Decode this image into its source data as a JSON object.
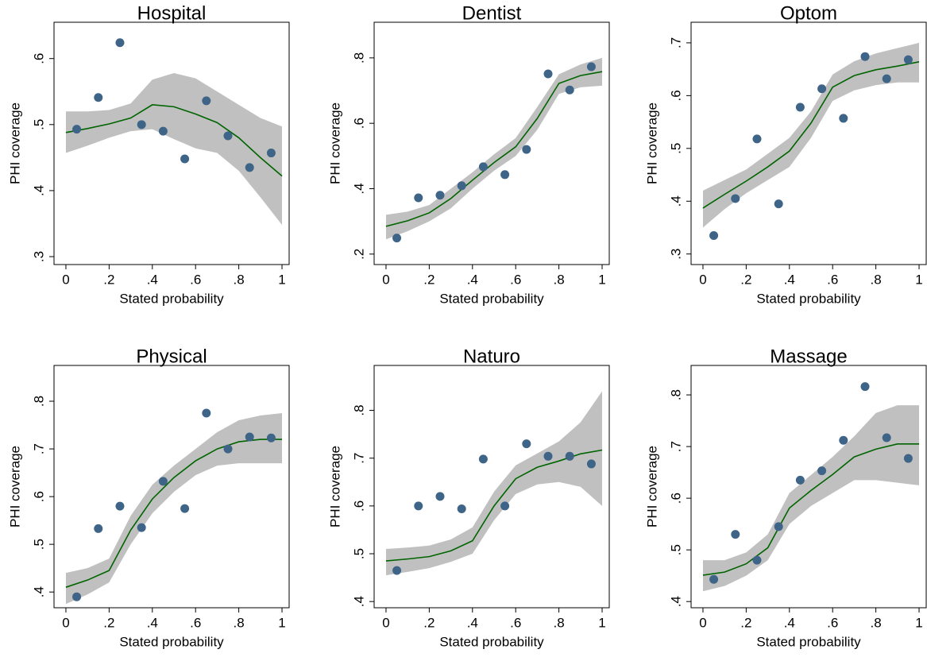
{
  "chart_data": [
    {
      "type": "scatter",
      "title": "Hospital",
      "xlabel": "Stated probability",
      "ylabel": "PHI coverage",
      "x": [
        0.05,
        0.15,
        0.25,
        0.35,
        0.45,
        0.55,
        0.65,
        0.75,
        0.85,
        0.95
      ],
      "values": [
        0.493,
        0.541,
        0.624,
        0.5,
        0.49,
        0.448,
        0.536,
        0.483,
        0.435,
        0.457
      ],
      "color": "#3e6487",
      "fit_x": [
        0,
        0.1,
        0.2,
        0.3,
        0.4,
        0.5,
        0.6,
        0.7,
        0.8,
        0.9,
        1
      ],
      "fit": [
        0.488,
        0.494,
        0.501,
        0.51,
        0.53,
        0.527,
        0.516,
        0.503,
        0.48,
        0.45,
        0.422
      ],
      "fit_color": "#006400",
      "ci_upper": [
        0.52,
        0.52,
        0.522,
        0.532,
        0.568,
        0.578,
        0.57,
        0.55,
        0.53,
        0.51,
        0.497
      ],
      "ci_lower": [
        0.457,
        0.468,
        0.48,
        0.49,
        0.493,
        0.478,
        0.464,
        0.457,
        0.43,
        0.39,
        0.348
      ],
      "ci_color": "#c0c0c0",
      "xlim": [
        -0.055,
        1.033
      ],
      "ylim": [
        0.288,
        0.655
      ],
      "xticks": [
        0,
        {
          "value": 0.2,
          "label": ".2"
        },
        {
          "value": 0.4,
          "label": ".4"
        },
        {
          "value": 0.6,
          "label": ".6"
        },
        {
          "value": 0.8,
          "label": ".8"
        },
        1
      ],
      "yticks": [
        {
          "value": 0.3,
          "label": ".3"
        },
        {
          "value": 0.4,
          "label": ".4"
        },
        {
          "value": 0.5,
          "label": ".5"
        },
        {
          "value": 0.6,
          "label": ".6"
        }
      ]
    },
    {
      "type": "scatter",
      "title": "Dentist",
      "xlabel": "Stated probability",
      "ylabel": "PHI coverage",
      "x": [
        0.05,
        0.15,
        0.25,
        0.35,
        0.45,
        0.55,
        0.65,
        0.75,
        0.85,
        0.95
      ],
      "values": [
        0.249,
        0.372,
        0.38,
        0.409,
        0.467,
        0.443,
        0.52,
        0.751,
        0.702,
        0.773
      ],
      "color": "#3e6487",
      "fit_x": [
        0,
        0.1,
        0.2,
        0.3,
        0.4,
        0.5,
        0.6,
        0.7,
        0.8,
        0.9,
        1
      ],
      "fit": [
        0.285,
        0.302,
        0.326,
        0.37,
        0.426,
        0.48,
        0.528,
        0.615,
        0.722,
        0.746,
        0.758
      ],
      "fit_color": "#006400",
      "ci_upper": [
        0.32,
        0.33,
        0.35,
        0.4,
        0.45,
        0.505,
        0.555,
        0.65,
        0.75,
        0.78,
        0.8
      ],
      "ci_lower": [
        0.245,
        0.27,
        0.3,
        0.34,
        0.4,
        0.455,
        0.5,
        0.58,
        0.69,
        0.71,
        0.715
      ],
      "ci_color": "#c0c0c0",
      "xlim": [
        -0.055,
        1.033
      ],
      "ylim": [
        0.168,
        0.909
      ],
      "xticks": [
        0,
        {
          "value": 0.2,
          "label": ".2"
        },
        {
          "value": 0.4,
          "label": ".4"
        },
        {
          "value": 0.6,
          "label": ".6"
        },
        {
          "value": 0.8,
          "label": ".8"
        },
        1
      ],
      "yticks": [
        {
          "value": 0.2,
          "label": ".2"
        },
        {
          "value": 0.4,
          "label": ".4"
        },
        {
          "value": 0.6,
          "label": ".6"
        },
        {
          "value": 0.8,
          "label": ".8"
        }
      ]
    },
    {
      "type": "scatter",
      "title": "Optom",
      "xlabel": "Stated probability",
      "ylabel": "PHI coverage",
      "x": [
        0.05,
        0.15,
        0.25,
        0.35,
        0.45,
        0.55,
        0.65,
        0.75,
        0.85,
        0.95
      ],
      "values": [
        0.335,
        0.405,
        0.518,
        0.395,
        0.578,
        0.613,
        0.557,
        0.674,
        0.632,
        0.668
      ],
      "color": "#3e6487",
      "fit_x": [
        0,
        0.1,
        0.2,
        0.3,
        0.4,
        0.5,
        0.6,
        0.7,
        0.8,
        0.9,
        1
      ],
      "fit": [
        0.387,
        0.413,
        0.438,
        0.465,
        0.495,
        0.548,
        0.616,
        0.638,
        0.649,
        0.656,
        0.664
      ],
      "fit_color": "#006400",
      "ci_upper": [
        0.42,
        0.44,
        0.46,
        0.49,
        0.52,
        0.57,
        0.64,
        0.665,
        0.68,
        0.69,
        0.7
      ],
      "ci_lower": [
        0.35,
        0.385,
        0.415,
        0.44,
        0.465,
        0.52,
        0.59,
        0.61,
        0.62,
        0.625,
        0.625
      ],
      "ci_color": "#c0c0c0",
      "xlim": [
        -0.055,
        1.033
      ],
      "ylim": [
        0.28,
        0.739
      ],
      "xticks": [
        0,
        {
          "value": 0.2,
          "label": ".2"
        },
        {
          "value": 0.4,
          "label": ".4"
        },
        {
          "value": 0.6,
          "label": ".6"
        },
        {
          "value": 0.8,
          "label": ".8"
        },
        1
      ],
      "yticks": [
        {
          "value": 0.3,
          "label": ".3"
        },
        {
          "value": 0.4,
          "label": ".4"
        },
        {
          "value": 0.5,
          "label": ".5"
        },
        {
          "value": 0.6,
          "label": ".6"
        },
        {
          "value": 0.7,
          "label": ".7"
        }
      ]
    },
    {
      "type": "scatter",
      "title": "Physical",
      "xlabel": "Stated probability",
      "ylabel": "PHI coverage",
      "x": [
        0.05,
        0.15,
        0.25,
        0.35,
        0.45,
        0.55,
        0.65,
        0.75,
        0.85,
        0.95
      ],
      "values": [
        0.39,
        0.533,
        0.58,
        0.535,
        0.632,
        0.575,
        0.775,
        0.7,
        0.725,
        0.723
      ],
      "color": "#3e6487",
      "fit_x": [
        0,
        0.1,
        0.2,
        0.3,
        0.4,
        0.5,
        0.6,
        0.7,
        0.8,
        0.9,
        1
      ],
      "fit": [
        0.41,
        0.425,
        0.445,
        0.53,
        0.595,
        0.64,
        0.675,
        0.7,
        0.715,
        0.72,
        0.72
      ],
      "fit_color": "#006400",
      "ci_upper": [
        0.44,
        0.45,
        0.47,
        0.56,
        0.625,
        0.665,
        0.7,
        0.735,
        0.76,
        0.77,
        0.775
      ],
      "ci_lower": [
        0.375,
        0.395,
        0.42,
        0.5,
        0.565,
        0.61,
        0.645,
        0.665,
        0.67,
        0.67,
        0.67
      ],
      "ci_color": "#c0c0c0",
      "xlim": [
        -0.055,
        1.033
      ],
      "ylim": [
        0.367,
        0.875
      ],
      "xticks": [
        0,
        {
          "value": 0.2,
          "label": ".2"
        },
        {
          "value": 0.4,
          "label": ".4"
        },
        {
          "value": 0.6,
          "label": ".6"
        },
        {
          "value": 0.8,
          "label": ".8"
        },
        1
      ],
      "yticks": [
        {
          "value": 0.4,
          "label": ".4"
        },
        {
          "value": 0.5,
          "label": ".5"
        },
        {
          "value": 0.6,
          "label": ".6"
        },
        {
          "value": 0.7,
          "label": ".7"
        },
        {
          "value": 0.8,
          "label": ".8"
        }
      ]
    },
    {
      "type": "scatter",
      "title": "Naturo",
      "xlabel": "Stated probability",
      "ylabel": "PHI coverage",
      "x": [
        0.05,
        0.15,
        0.25,
        0.35,
        0.45,
        0.55,
        0.65,
        0.75,
        0.85,
        0.95
      ],
      "values": [
        0.465,
        0.6,
        0.62,
        0.594,
        0.698,
        0.6,
        0.73,
        0.704,
        0.704,
        0.688
      ],
      "color": "#3e6487",
      "fit_x": [
        0,
        0.1,
        0.2,
        0.3,
        0.4,
        0.5,
        0.6,
        0.7,
        0.8,
        0.9,
        1
      ],
      "fit": [
        0.485,
        0.489,
        0.494,
        0.506,
        0.527,
        0.6,
        0.657,
        0.681,
        0.694,
        0.709,
        0.717
      ],
      "fit_color": "#006400",
      "ci_upper": [
        0.51,
        0.513,
        0.517,
        0.53,
        0.555,
        0.63,
        0.685,
        0.71,
        0.735,
        0.775,
        0.84
      ],
      "ci_lower": [
        0.455,
        0.462,
        0.47,
        0.483,
        0.5,
        0.57,
        0.625,
        0.645,
        0.65,
        0.64,
        0.6
      ],
      "ci_color": "#c0c0c0",
      "xlim": [
        -0.055,
        1.033
      ],
      "ylim": [
        0.387,
        0.894
      ],
      "xticks": [
        0,
        {
          "value": 0.2,
          "label": ".2"
        },
        {
          "value": 0.4,
          "label": ".4"
        },
        {
          "value": 0.6,
          "label": ".6"
        },
        {
          "value": 0.8,
          "label": ".8"
        },
        1
      ],
      "yticks": [
        {
          "value": 0.4,
          "label": ".4"
        },
        {
          "value": 0.5,
          "label": ".5"
        },
        {
          "value": 0.6,
          "label": ".6"
        },
        {
          "value": 0.7,
          "label": ".7"
        },
        {
          "value": 0.8,
          "label": ".8"
        }
      ]
    },
    {
      "type": "scatter",
      "title": "Massage",
      "xlabel": "Stated probability",
      "ylabel": "PHI coverage",
      "x": [
        0.05,
        0.15,
        0.25,
        0.35,
        0.45,
        0.55,
        0.65,
        0.75,
        0.85,
        0.95
      ],
      "values": [
        0.443,
        0.53,
        0.48,
        0.545,
        0.635,
        0.653,
        0.712,
        0.816,
        0.717,
        0.677
      ],
      "color": "#3e6487",
      "fit_x": [
        0,
        0.1,
        0.2,
        0.3,
        0.4,
        0.5,
        0.6,
        0.7,
        0.8,
        0.9,
        1
      ],
      "fit": [
        0.451,
        0.457,
        0.473,
        0.504,
        0.581,
        0.615,
        0.646,
        0.68,
        0.695,
        0.705,
        0.705
      ],
      "fit_color": "#006400",
      "ci_upper": [
        0.48,
        0.48,
        0.495,
        0.53,
        0.61,
        0.645,
        0.68,
        0.72,
        0.765,
        0.78,
        0.78
      ],
      "ci_lower": [
        0.42,
        0.43,
        0.45,
        0.48,
        0.55,
        0.585,
        0.61,
        0.635,
        0.635,
        0.63,
        0.625
      ],
      "ci_color": "#c0c0c0",
      "xlim": [
        -0.055,
        1.033
      ],
      "ylim": [
        0.388,
        0.857
      ],
      "xticks": [
        0,
        {
          "value": 0.2,
          "label": ".2"
        },
        {
          "value": 0.4,
          "label": ".4"
        },
        {
          "value": 0.6,
          "label": ".6"
        },
        {
          "value": 0.8,
          "label": ".8"
        },
        1
      ],
      "yticks": [
        {
          "value": 0.4,
          "label": ".4"
        },
        {
          "value": 0.5,
          "label": ".5"
        },
        {
          "value": 0.6,
          "label": ".6"
        },
        {
          "value": 0.7,
          "label": ".7"
        },
        {
          "value": 0.8,
          "label": ".8"
        }
      ]
    }
  ]
}
